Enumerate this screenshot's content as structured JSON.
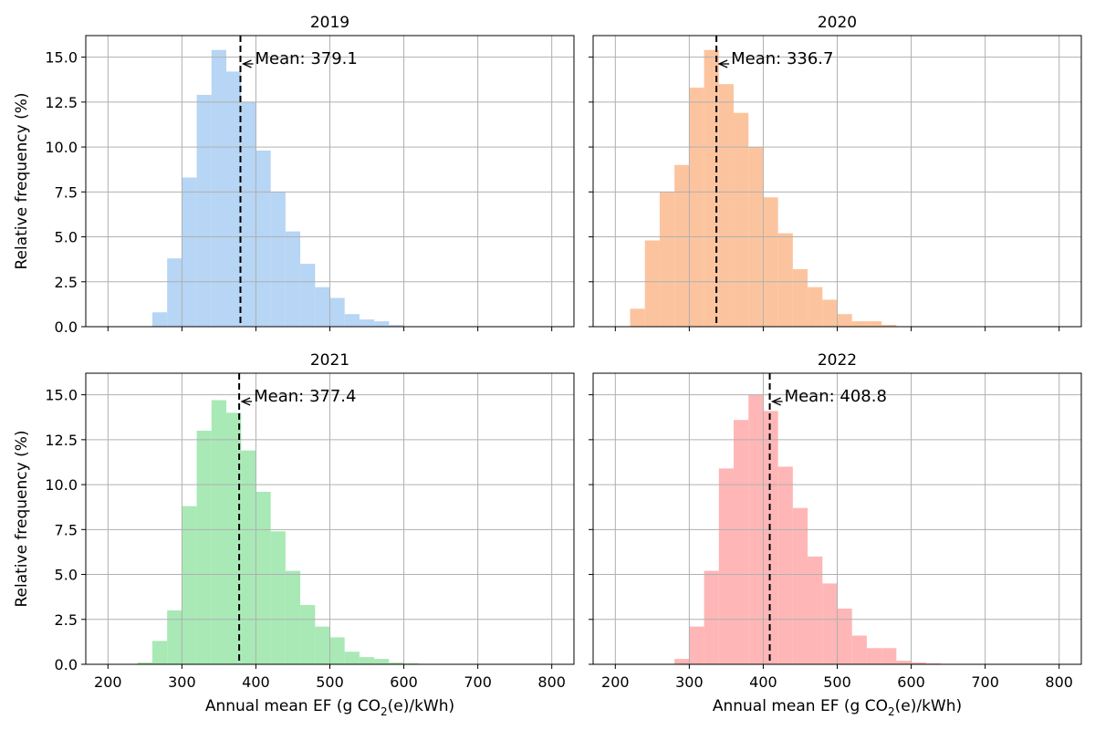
{
  "chart_data": [
    {
      "type": "bar",
      "title": "2019",
      "color": "#b7d5f4",
      "bin_width": 20,
      "bin_starts": [
        260,
        280,
        300,
        320,
        340,
        360,
        380,
        400,
        420,
        440,
        460,
        480,
        500,
        520,
        540,
        560,
        580
      ],
      "values": [
        0.8,
        3.8,
        8.3,
        12.9,
        15.4,
        14.2,
        12.5,
        9.8,
        7.5,
        5.3,
        3.5,
        2.2,
        1.6,
        0.7,
        0.4,
        0.3,
        0.1
      ],
      "mean": 379.1,
      "mean_label": "Mean: 379.1",
      "xlabel": "",
      "ylabel": "Relative frequency (%)",
      "xlim": [
        170,
        830
      ],
      "ylim": [
        0,
        16.2
      ],
      "xticks": [
        200,
        300,
        400,
        500,
        600,
        700,
        800
      ],
      "yticks": [
        "0.0",
        "2.5",
        "5.0",
        "7.5",
        "10.0",
        "12.5",
        "15.0"
      ],
      "grid": true
    },
    {
      "type": "bar",
      "title": "2020",
      "color": "#fcc49e",
      "bin_width": 20,
      "bin_starts": [
        220,
        240,
        260,
        280,
        300,
        320,
        340,
        360,
        380,
        400,
        420,
        440,
        460,
        480,
        500,
        520,
        540,
        560
      ],
      "values": [
        1.0,
        4.8,
        7.5,
        9.0,
        13.3,
        15.4,
        13.5,
        11.9,
        10.0,
        7.2,
        5.2,
        3.2,
        2.2,
        1.5,
        0.7,
        0.3,
        0.3,
        0.1
      ],
      "mean": 336.7,
      "mean_label": "Mean: 336.7",
      "xlabel": "",
      "ylabel": "",
      "xlim": [
        170,
        830
      ],
      "ylim": [
        0,
        16.2
      ],
      "xticks": [
        200,
        300,
        400,
        500,
        600,
        700,
        800
      ],
      "yticks": [],
      "grid": true
    },
    {
      "type": "bar",
      "title": "2021",
      "color": "#a8e9b6",
      "bin_width": 20,
      "bin_starts": [
        240,
        260,
        280,
        300,
        320,
        340,
        360,
        380,
        400,
        420,
        440,
        460,
        480,
        500,
        520,
        540,
        560,
        580,
        600
      ],
      "values": [
        0.1,
        1.3,
        3.0,
        8.8,
        13.0,
        14.7,
        14.0,
        11.9,
        9.6,
        7.4,
        5.2,
        3.3,
        2.1,
        1.5,
        0.7,
        0.4,
        0.3,
        0.1,
        0.05
      ],
      "mean": 377.4,
      "mean_label": "Mean: 377.4",
      "xlabel": "Annual mean EF (g CO",
      "xlabel_sub": "2",
      "xlabel_end": "(e)/kWh)",
      "ylabel": "Relative frequency (%)",
      "xlim": [
        170,
        830
      ],
      "ylim": [
        0,
        16.2
      ],
      "xticks": [
        200,
        300,
        400,
        500,
        600,
        700,
        800
      ],
      "yticks": [
        "0.0",
        "2.5",
        "5.0",
        "7.5",
        "10.0",
        "12.5",
        "15.0"
      ],
      "grid": true
    },
    {
      "type": "bar",
      "title": "2022",
      "color": "#ffb6b6",
      "bin_width": 20,
      "bin_starts": [
        280,
        300,
        320,
        340,
        360,
        380,
        400,
        420,
        440,
        460,
        480,
        500,
        520,
        540,
        560,
        580,
        600,
        620
      ],
      "values": [
        0.3,
        2.1,
        5.2,
        10.9,
        13.6,
        15.0,
        14.1,
        11.0,
        8.7,
        6.0,
        4.5,
        3.1,
        1.6,
        0.9,
        0.9,
        0.2,
        0.1,
        0.05
      ],
      "mean": 408.8,
      "mean_label": "Mean: 408.8",
      "xlabel": "Annual mean EF (g CO",
      "xlabel_sub": "2",
      "xlabel_end": "(e)/kWh)",
      "ylabel": "",
      "xlim": [
        170,
        830
      ],
      "ylim": [
        0,
        16.2
      ],
      "xticks": [
        200,
        300,
        400,
        500,
        600,
        700,
        800
      ],
      "yticks": [],
      "grid": true
    }
  ]
}
